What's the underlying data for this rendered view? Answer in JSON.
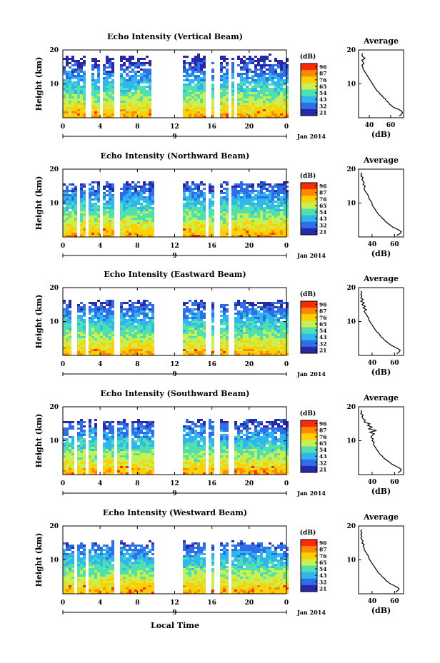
{
  "figure": {
    "local_time_label": "Local Time",
    "date_label": "Jan 2014"
  },
  "chart_data": [
    {
      "type": "heatmap",
      "title": "Echo Intensity (Vertical Beam)",
      "ylabel": "Height (km)",
      "x_ticks": [
        "0",
        "4",
        "8",
        "12",
        "16",
        "20",
        "0"
      ],
      "day_marker": "9",
      "y_ticks": [
        "20",
        "10"
      ],
      "ylim": [
        0,
        20
      ],
      "colorbar_unit": "(dB)",
      "colorbar_ticks": [
        "96",
        "87",
        "76",
        "65",
        "54",
        "43",
        "32",
        "21"
      ],
      "colorbar_colors": [
        "#ff2a00",
        "#ff8a00",
        "#ffd000",
        "#c8f050",
        "#50e0b0",
        "#2fb6ee",
        "#2e6ee8",
        "#2828a8"
      ],
      "data_gaps_hours": [
        [
          2.4,
          3.0
        ],
        [
          3.7,
          4.0
        ],
        [
          5.3,
          5.9
        ],
        [
          9.5,
          12.6
        ],
        [
          15.3,
          15.7
        ],
        [
          16.2,
          16.8
        ],
        [
          17.6,
          18.0
        ],
        [
          18.1,
          18.6
        ]
      ],
      "top_km": 19,
      "avg_profile": {
        "title": "Average",
        "xlabel": "(dB)",
        "x_ticks": [
          "40",
          "60"
        ],
        "y_ticks": [
          "20",
          "10"
        ],
        "xlim": [
          30,
          72
        ],
        "ylim": [
          0,
          20
        ],
        "heights_km": [
          0.5,
          1,
          1.5,
          2,
          2.5,
          3,
          3.5,
          4,
          4.5,
          5,
          5.5,
          6,
          6.5,
          7,
          7.5,
          8,
          8.5,
          9,
          9.5,
          10,
          10.5,
          11,
          11.5,
          12,
          12.5,
          13,
          13.5,
          14,
          14.5,
          15,
          15.5,
          16,
          16.5,
          17,
          17.5,
          18,
          18.5,
          19
        ],
        "values_db": [
          68,
          70,
          71,
          70,
          67,
          63,
          61,
          59,
          58,
          56,
          55,
          53,
          52,
          50,
          49,
          47,
          46,
          45,
          44,
          43,
          42,
          41,
          40,
          39,
          38,
          37,
          36,
          35,
          34,
          34,
          33,
          35,
          34,
          33,
          36,
          34,
          33,
          34
        ]
      }
    },
    {
      "type": "heatmap",
      "title": "Echo Intensity (Northward Beam)",
      "ylabel": "Height (km)",
      "x_ticks": [
        "0",
        "4",
        "8",
        "12",
        "16",
        "20",
        "0"
      ],
      "day_marker": "9",
      "y_ticks": [
        "20",
        "10"
      ],
      "ylim": [
        0,
        20
      ],
      "colorbar_unit": "(dB)",
      "colorbar_ticks": [
        "96",
        "87",
        "76",
        "65",
        "54",
        "43",
        "32",
        "21"
      ],
      "colorbar_colors": [
        "#ff2a00",
        "#ff8a00",
        "#ffd000",
        "#c8f050",
        "#50e0b0",
        "#2fb6ee",
        "#2e6ee8",
        "#2828a8"
      ],
      "data_gaps_hours": [
        [
          1.3,
          1.6
        ],
        [
          2.2,
          2.5
        ],
        [
          3.9,
          4.1
        ],
        [
          5.5,
          6.0
        ],
        [
          9.6,
          12.6
        ],
        [
          15.3,
          15.6
        ],
        [
          16.1,
          16.6
        ],
        [
          17.5,
          17.9
        ]
      ],
      "top_km": 17,
      "avg_profile": {
        "title": "Average",
        "xlabel": "(dB)",
        "x_ticks": [
          "40",
          "60"
        ],
        "y_ticks": [
          "20",
          "10"
        ],
        "xlim": [
          28,
          68
        ],
        "ylim": [
          0,
          20
        ],
        "heights_km": [
          0.5,
          1,
          1.5,
          2,
          2.5,
          3,
          3.5,
          4,
          4.5,
          5,
          5.5,
          6,
          6.5,
          7,
          7.5,
          8,
          8.5,
          9,
          9.5,
          10,
          10.5,
          11,
          11.5,
          12,
          12.5,
          13,
          13.5,
          14,
          14.5,
          15,
          15.5,
          16,
          16.5,
          17,
          17.5,
          18,
          18.5,
          19
        ],
        "values_db": [
          62,
          65,
          66,
          64,
          61,
          58,
          56,
          54,
          52,
          51,
          49,
          48,
          46,
          45,
          44,
          43,
          42,
          41,
          40,
          40,
          39,
          38,
          37,
          37,
          36,
          35,
          34,
          33,
          33,
          34,
          32,
          33,
          32,
          31,
          32,
          30,
          31,
          30
        ]
      }
    },
    {
      "type": "heatmap",
      "title": "Echo Intensity (Eastward Beam)",
      "ylabel": "Height (km)",
      "x_ticks": [
        "0",
        "4",
        "8",
        "12",
        "16",
        "20",
        "0"
      ],
      "day_marker": "9",
      "y_ticks": [
        "20",
        "10"
      ],
      "ylim": [
        0,
        20
      ],
      "colorbar_unit": "(dB)",
      "colorbar_ticks": [
        "96",
        "87",
        "76",
        "65",
        "54",
        "43",
        "32",
        "21"
      ],
      "colorbar_colors": [
        "#ff2a00",
        "#ff8a00",
        "#ffd000",
        "#c8f050",
        "#50e0b0",
        "#2fb6ee",
        "#2e6ee8",
        "#2828a8"
      ],
      "data_gaps_hours": [
        [
          0.9,
          1.4
        ],
        [
          2.3,
          2.7
        ],
        [
          5.3,
          5.9
        ],
        [
          9.7,
          12.6
        ],
        [
          15.3,
          15.8
        ],
        [
          16.2,
          16.6
        ],
        [
          17.5,
          17.9
        ],
        [
          18.0,
          18.4
        ]
      ],
      "top_km": 17,
      "avg_profile": {
        "title": "Average",
        "xlabel": "(dB)",
        "x_ticks": [
          "40",
          "60"
        ],
        "y_ticks": [
          "20",
          "10"
        ],
        "xlim": [
          28,
          68
        ],
        "ylim": [
          0,
          20
        ],
        "heights_km": [
          0.5,
          1,
          1.5,
          2,
          2.5,
          3,
          3.5,
          4,
          4.5,
          5,
          5.5,
          6,
          6.5,
          7,
          7.5,
          8,
          8.5,
          9,
          9.5,
          10,
          10.5,
          11,
          11.5,
          12,
          12.5,
          13,
          13.5,
          14,
          14.5,
          15,
          15.5,
          16,
          16.5,
          17,
          17.5,
          18,
          18.5,
          19
        ],
        "values_db": [
          62,
          64,
          65,
          63,
          60,
          57,
          55,
          53,
          51,
          50,
          48,
          47,
          46,
          44,
          43,
          42,
          41,
          40,
          39,
          38,
          37,
          37,
          36,
          35,
          34,
          33,
          35,
          32,
          34,
          31,
          33,
          30,
          32,
          30,
          31,
          30,
          31,
          30
        ]
      }
    },
    {
      "type": "heatmap",
      "title": "Echo Intensity (Southward Beam)",
      "ylabel": "Height (km)",
      "x_ticks": [
        "0",
        "4",
        "8",
        "12",
        "16",
        "20",
        "0"
      ],
      "day_marker": "9",
      "y_ticks": [
        "20",
        "10"
      ],
      "ylim": [
        0,
        20
      ],
      "colorbar_unit": "(dB)",
      "colorbar_ticks": [
        "96",
        "87",
        "76",
        "65",
        "54",
        "43",
        "32",
        "21"
      ],
      "colorbar_colors": [
        "#ff2a00",
        "#ff8a00",
        "#ffd000",
        "#c8f050",
        "#50e0b0",
        "#2fb6ee",
        "#2e6ee8",
        "#2828a8"
      ],
      "data_gaps_hours": [
        [
          1.1,
          1.4
        ],
        [
          2.3,
          2.6
        ],
        [
          3.6,
          4.0
        ],
        [
          5.4,
          5.8
        ],
        [
          6.8,
          7.2
        ],
        [
          9.6,
          12.6
        ],
        [
          15.3,
          15.6
        ],
        [
          16.2,
          16.6
        ],
        [
          17.6,
          18.1
        ]
      ],
      "top_km": 17,
      "avg_profile": {
        "title": "Average",
        "xlabel": "(dB)",
        "x_ticks": [
          "40",
          "60"
        ],
        "y_ticks": [
          "20",
          "10"
        ],
        "xlim": [
          28,
          68
        ],
        "ylim": [
          0,
          20
        ],
        "heights_km": [
          0.5,
          1,
          1.5,
          2,
          2.5,
          3,
          3.5,
          4,
          4.5,
          5,
          5.5,
          6,
          6.5,
          7,
          7.5,
          8,
          8.5,
          9,
          9.5,
          10,
          10.5,
          11,
          11.5,
          12,
          12.5,
          13,
          13.5,
          14,
          14.5,
          15,
          15.5,
          16,
          16.5,
          17,
          17.5,
          18,
          18.5,
          19
        ],
        "values_db": [
          63,
          65,
          66,
          64,
          61,
          58,
          56,
          54,
          52,
          50,
          49,
          47,
          46,
          45,
          44,
          43,
          42,
          41,
          42,
          40,
          41,
          39,
          40,
          42,
          38,
          44,
          37,
          40,
          36,
          38,
          33,
          34,
          32,
          31,
          32,
          30,
          31,
          30
        ]
      }
    },
    {
      "type": "heatmap",
      "title": "Echo Intensity (Westward Beam)",
      "ylabel": "Height (km)",
      "x_ticks": [
        "0",
        "4",
        "8",
        "12",
        "16",
        "20",
        "0"
      ],
      "day_marker": "9",
      "y_ticks": [
        "20",
        "10"
      ],
      "ylim": [
        0,
        20
      ],
      "colorbar_unit": "(dB)",
      "colorbar_ticks": [
        "96",
        "87",
        "76",
        "65",
        "54",
        "43",
        "32",
        "21"
      ],
      "colorbar_colors": [
        "#ff2a00",
        "#ff8a00",
        "#ffd000",
        "#c8f050",
        "#50e0b0",
        "#2fb6ee",
        "#2e6ee8",
        "#2828a8"
      ],
      "data_gaps_hours": [
        [
          1.2,
          1.5
        ],
        [
          2.3,
          2.6
        ],
        [
          5.4,
          5.9
        ],
        [
          9.6,
          12.6
        ],
        [
          15.3,
          15.7
        ],
        [
          16.2,
          16.6
        ],
        [
          17.6,
          18.0
        ]
      ],
      "top_km": 16,
      "avg_profile": {
        "title": "Average",
        "xlabel": "(dB)",
        "x_ticks": [
          "40",
          "60"
        ],
        "y_ticks": [
          "20",
          "10"
        ],
        "xlim": [
          28,
          68
        ],
        "ylim": [
          0,
          20
        ],
        "heights_km": [
          0.5,
          1,
          1.5,
          2,
          2.5,
          3,
          3.5,
          4,
          4.5,
          5,
          5.5,
          6,
          6.5,
          7,
          7.5,
          8,
          8.5,
          9,
          9.5,
          10,
          10.5,
          11,
          11.5,
          12,
          12.5,
          13,
          13.5,
          14,
          14.5,
          15,
          15.5,
          16,
          16.5,
          17,
          17.5,
          18,
          18.5,
          19
        ],
        "values_db": [
          61,
          63,
          64,
          62,
          59,
          56,
          54,
          52,
          51,
          49,
          48,
          46,
          45,
          44,
          43,
          42,
          41,
          40,
          39,
          38,
          37,
          37,
          36,
          35,
          34,
          33,
          33,
          32,
          33,
          31,
          32,
          31,
          30,
          31,
          30,
          31,
          30,
          31
        ]
      }
    }
  ]
}
